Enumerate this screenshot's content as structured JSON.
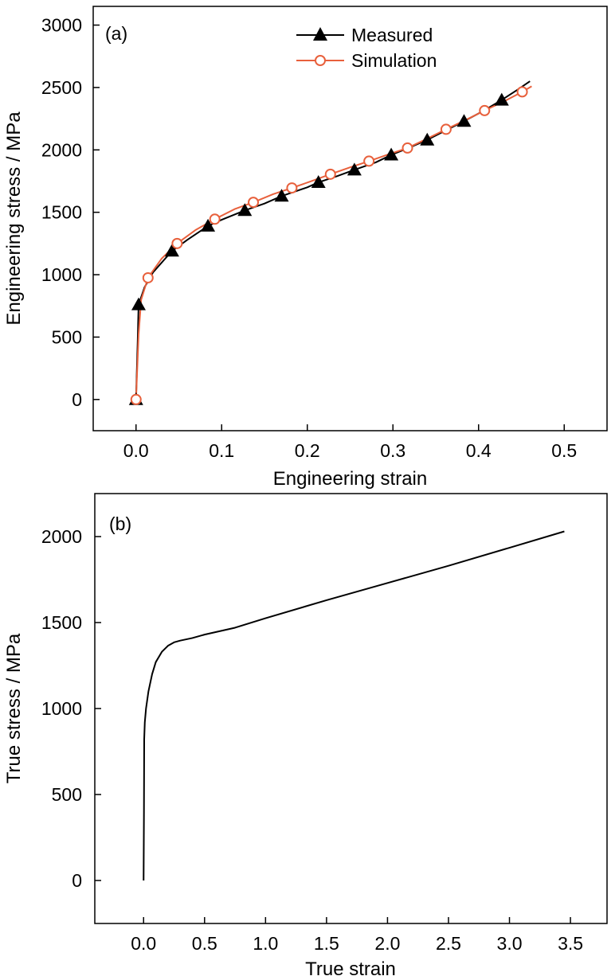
{
  "colors": {
    "measured": "#000000",
    "simulation": "#e8603c",
    "axes": "#000000",
    "background": "#ffffff"
  },
  "chart_data": [
    {
      "type": "line",
      "panel_label": "(a)",
      "xlabel": "Engineering strain",
      "ylabel": "Engineering stress / MPa",
      "xlim": [
        -0.05,
        0.55
      ],
      "ylim": [
        -250,
        3150
      ],
      "xticks": [
        0.0,
        0.1,
        0.2,
        0.3,
        0.4,
        0.5
      ],
      "xtick_labels": [
        "0.0",
        "0.1",
        "0.2",
        "0.3",
        "0.4",
        "0.5"
      ],
      "yticks": [
        0,
        500,
        1000,
        1500,
        2000,
        2500,
        3000
      ],
      "ytick_labels": [
        "0",
        "500",
        "1000",
        "1500",
        "2000",
        "2500",
        "3000"
      ],
      "grid": false,
      "legend_position": "top-center",
      "series": [
        {
          "name": "Measured",
          "marker": "filled-triangle",
          "color": "#000000",
          "curve": [
            [
              0.0,
              0
            ],
            [
              0.002,
              480
            ],
            [
              0.003,
              760
            ],
            [
              0.01,
              900
            ],
            [
              0.02,
              1020
            ],
            [
              0.042,
              1190
            ],
            [
              0.06,
              1280
            ],
            [
              0.084,
              1390
            ],
            [
              0.1,
              1440
            ],
            [
              0.127,
              1515
            ],
            [
              0.15,
              1570
            ],
            [
              0.17,
              1630
            ],
            [
              0.2,
              1700
            ],
            [
              0.213,
              1740
            ],
            [
              0.235,
              1790
            ],
            [
              0.255,
              1840
            ],
            [
              0.28,
              1900
            ],
            [
              0.298,
              1960
            ],
            [
              0.32,
              2020
            ],
            [
              0.34,
              2080
            ],
            [
              0.36,
              2150
            ],
            [
              0.383,
              2230
            ],
            [
              0.405,
              2310
            ],
            [
              0.427,
              2400
            ],
            [
              0.445,
              2480
            ],
            [
              0.46,
              2550
            ]
          ],
          "markers": [
            [
              0.0,
              0
            ],
            [
              0.003,
              760
            ],
            [
              0.042,
              1190
            ],
            [
              0.084,
              1390
            ],
            [
              0.127,
              1515
            ],
            [
              0.17,
              1630
            ],
            [
              0.213,
              1740
            ],
            [
              0.255,
              1840
            ],
            [
              0.298,
              1960
            ],
            [
              0.34,
              2080
            ],
            [
              0.383,
              2230
            ],
            [
              0.427,
              2400
            ]
          ]
        },
        {
          "name": "Simulation",
          "marker": "open-circle",
          "color": "#e8603c",
          "curve": [
            [
              0.0,
              0
            ],
            [
              0.003,
              520
            ],
            [
              0.006,
              800
            ],
            [
              0.014,
              975
            ],
            [
              0.03,
              1130
            ],
            [
              0.048,
              1250
            ],
            [
              0.07,
              1360
            ],
            [
              0.092,
              1445
            ],
            [
              0.115,
              1525
            ],
            [
              0.137,
              1580
            ],
            [
              0.16,
              1645
            ],
            [
              0.182,
              1695
            ],
            [
              0.205,
              1750
            ],
            [
              0.227,
              1805
            ],
            [
              0.25,
              1860
            ],
            [
              0.272,
              1910
            ],
            [
              0.295,
              1965
            ],
            [
              0.317,
              2015
            ],
            [
              0.34,
              2090
            ],
            [
              0.362,
              2165
            ],
            [
              0.385,
              2240
            ],
            [
              0.407,
              2315
            ],
            [
              0.43,
              2390
            ],
            [
              0.451,
              2465
            ],
            [
              0.462,
              2510
            ]
          ],
          "markers": [
            [
              0.0,
              0
            ],
            [
              0.014,
              975
            ],
            [
              0.048,
              1250
            ],
            [
              0.092,
              1445
            ],
            [
              0.137,
              1580
            ],
            [
              0.182,
              1695
            ],
            [
              0.227,
              1805
            ],
            [
              0.272,
              1910
            ],
            [
              0.317,
              2015
            ],
            [
              0.362,
              2165
            ],
            [
              0.407,
              2315
            ],
            [
              0.451,
              2465
            ]
          ]
        }
      ]
    },
    {
      "type": "line",
      "panel_label": "(b)",
      "xlabel": "True strain",
      "ylabel": "True stress / MPa",
      "xlim": [
        -0.4,
        3.8
      ],
      "ylim": [
        -250,
        2250
      ],
      "xticks": [
        0.0,
        0.5,
        1.0,
        1.5,
        2.0,
        2.5,
        3.0,
        3.5
      ],
      "xtick_labels": [
        "0.0",
        "0.5",
        "1.0",
        "1.5",
        "2.0",
        "2.5",
        "3.0",
        "3.5"
      ],
      "yticks": [
        0,
        500,
        1000,
        1500,
        2000
      ],
      "ytick_labels": [
        "0",
        "500",
        "1000",
        "1500",
        "2000"
      ],
      "grid": false,
      "series": [
        {
          "color": "#000000",
          "curve": [
            [
              0.0,
              0
            ],
            [
              0.003,
              400
            ],
            [
              0.005,
              820
            ],
            [
              0.01,
              920
            ],
            [
              0.02,
              1000
            ],
            [
              0.04,
              1100
            ],
            [
              0.07,
              1200
            ],
            [
              0.1,
              1270
            ],
            [
              0.15,
              1330
            ],
            [
              0.2,
              1365
            ],
            [
              0.25,
              1385
            ],
            [
              0.3,
              1395
            ],
            [
              0.4,
              1410
            ],
            [
              0.5,
              1430
            ],
            [
              0.75,
              1470
            ],
            [
              1.0,
              1525
            ],
            [
              1.5,
              1630
            ],
            [
              2.0,
              1730
            ],
            [
              2.5,
              1830
            ],
            [
              3.0,
              1935
            ],
            [
              3.45,
              2030
            ]
          ]
        }
      ]
    }
  ]
}
